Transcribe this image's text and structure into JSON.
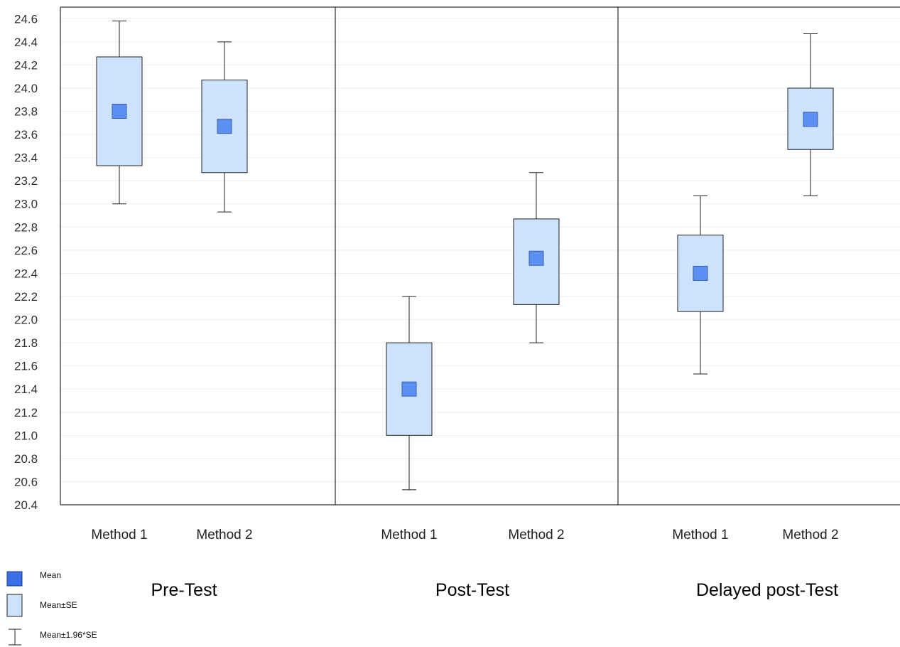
{
  "chart_data": {
    "type": "box",
    "title": "",
    "xlabel": "",
    "ylabel": "",
    "ylim": [
      20.4,
      24.7
    ],
    "yticks": [
      20.4,
      20.6,
      20.8,
      21.0,
      21.2,
      21.4,
      21.6,
      21.8,
      22.0,
      22.2,
      22.4,
      22.6,
      22.8,
      23.0,
      23.2,
      23.4,
      23.6,
      23.8,
      24.0,
      24.2,
      24.4,
      24.6
    ],
    "ytick_labels": [
      "20.4",
      "20.6",
      "20.8",
      "21.0",
      "21.2",
      "21.4",
      "21.6",
      "21.8",
      "22.0",
      "22.2",
      "22.4",
      "22.6",
      "22.8",
      "23.0",
      "23.2",
      "23.4",
      "23.6",
      "23.8",
      "24.0",
      "24.2",
      "24.4",
      "24.6"
    ],
    "grid": true,
    "groups": [
      {
        "name": "Pre-Test",
        "boxes": [
          {
            "category": "Method 1",
            "mean": 23.8,
            "se_low": 23.33,
            "se_high": 24.27,
            "ci_low": 23.0,
            "ci_high": 24.58
          },
          {
            "category": "Method 2",
            "mean": 23.67,
            "se_low": 23.27,
            "se_high": 24.07,
            "ci_low": 22.93,
            "ci_high": 24.4
          }
        ]
      },
      {
        "name": "Post-Test",
        "boxes": [
          {
            "category": "Method 1",
            "mean": 21.4,
            "se_low": 21.0,
            "se_high": 21.8,
            "ci_low": 20.53,
            "ci_high": 22.2
          },
          {
            "category": "Method 2",
            "mean": 22.53,
            "se_low": 22.13,
            "se_high": 22.87,
            "ci_low": 21.8,
            "ci_high": 23.27
          }
        ]
      },
      {
        "name": "Delayed post-Test",
        "boxes": [
          {
            "category": "Method 1",
            "mean": 22.4,
            "se_low": 22.07,
            "se_high": 22.73,
            "ci_low": 21.53,
            "ci_high": 23.07
          },
          {
            "category": "Method 2",
            "mean": 23.73,
            "se_low": 23.47,
            "se_high": 24.0,
            "ci_low": 23.07,
            "ci_high": 24.47
          }
        ]
      }
    ],
    "legend": [
      {
        "label": "Mean",
        "symbol": "mean-square"
      },
      {
        "label": "Mean±SE",
        "symbol": "se-box"
      },
      {
        "label": "Mean±1.96*SE",
        "symbol": "whisker"
      }
    ],
    "legend_position": "bottom-left",
    "colors": {
      "mean_fill": "#5b8ff2",
      "mean_border": "#3d5fa8",
      "box_fill": "#cde3fb",
      "box_stroke": "#222222",
      "whisker": "#222222",
      "legend_mean_fill": "#3b6fe6",
      "grid": "#eeeeee"
    }
  }
}
